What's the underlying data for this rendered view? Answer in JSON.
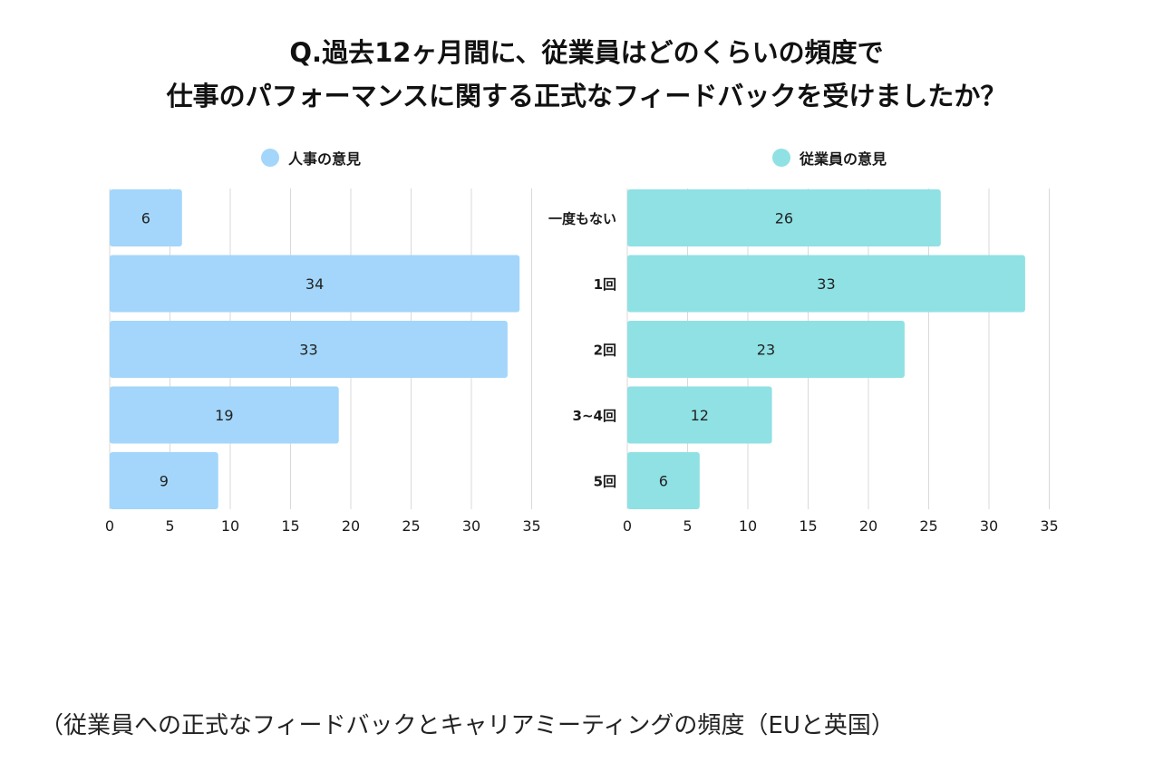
{
  "title": {
    "line1": "Q.過去12ヶ月間に、従業員はどのくらいの頻度で",
    "line2": "仕事のパフォーマンスに関する正式なフィードバックを受けましたか？"
  },
  "caption": "（従業員への正式なフィードバックとキャリアミーティングの頻度（EUと英国）",
  "colors": {
    "hr": "#a3d6fa",
    "employee": "#8fe1e4",
    "grid": "#d9d9d9",
    "label": "#1a1a1a"
  },
  "chart_data": [
    {
      "type": "bar",
      "orientation": "horizontal",
      "legend": "人事の意見",
      "categories": [
        "一度もない",
        "1回",
        "2回",
        "3~4回",
        "5回"
      ],
      "values": [
        6,
        34,
        33,
        19,
        9
      ],
      "xlim": [
        0,
        35
      ],
      "xticks": [
        0,
        5,
        10,
        15,
        20,
        25,
        30,
        35
      ],
      "grid": true,
      "legend_placement": "top"
    },
    {
      "type": "bar",
      "orientation": "horizontal",
      "legend": "従業員の意見",
      "categories": [
        "一度もない",
        "1回",
        "2回",
        "3~4回",
        "5回"
      ],
      "values": [
        26,
        33,
        23,
        12,
        6
      ],
      "xlim": [
        0,
        35
      ],
      "xticks": [
        0,
        5,
        10,
        15,
        20,
        25,
        30,
        35
      ],
      "grid": true,
      "legend_placement": "top"
    }
  ]
}
